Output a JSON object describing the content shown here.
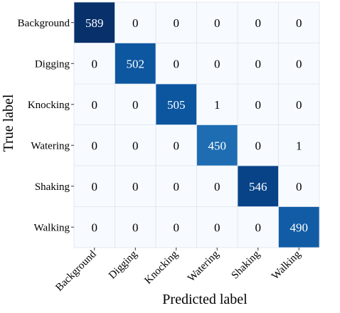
{
  "chart_data": {
    "type": "heatmap",
    "xlabel": "Predicted label",
    "ylabel": "True label",
    "x_categories": [
      "Background",
      "Digging",
      "Knocking",
      "Watering",
      "Shaking",
      "Walking"
    ],
    "y_categories": [
      "Background",
      "Digging",
      "Knocking",
      "Watering",
      "Shaking",
      "Walking"
    ],
    "values": [
      [
        589,
        0,
        0,
        0,
        0,
        0
      ],
      [
        0,
        502,
        0,
        0,
        0,
        0
      ],
      [
        0,
        0,
        505,
        1,
        0,
        0
      ],
      [
        0,
        0,
        0,
        450,
        0,
        1
      ],
      [
        0,
        0,
        0,
        0,
        546,
        0
      ],
      [
        0,
        0,
        0,
        0,
        0,
        490
      ]
    ],
    "colormap": "Blues",
    "colors": {
      "low": "#f7fbff",
      "high": "#08306b",
      "text_light": "#ffffff",
      "text_dark": "#000000",
      "grid": "#dde3ec"
    }
  }
}
